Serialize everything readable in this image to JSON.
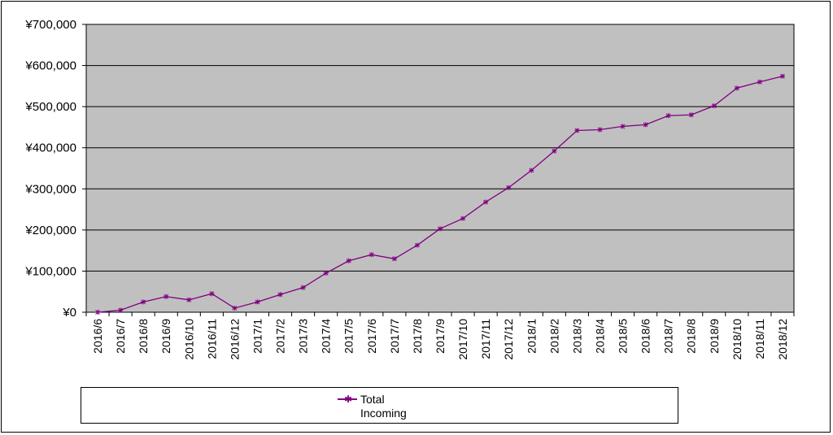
{
  "chart_data": {
    "type": "line",
    "title": "",
    "xlabel": "",
    "ylabel": "",
    "ylim": [
      0,
      700000
    ],
    "yticks": [
      "¥0",
      "¥100,000",
      "¥200,000",
      "¥300,000",
      "¥400,000",
      "¥500,000",
      "¥600,000",
      "¥700,000"
    ],
    "grid": true,
    "legend_position": "bottom",
    "categories": [
      "2016/6",
      "2016/7",
      "2016/8",
      "2016/9",
      "2016/10",
      "2016/11",
      "2016/12",
      "2017/1",
      "2017/2",
      "2017/3",
      "2017/4",
      "2017/5",
      "2017/6",
      "2017/7",
      "2017/8",
      "2017/9",
      "2017/10",
      "2017/11",
      "2017/12",
      "2018/1",
      "2018/2",
      "2018/3",
      "2018/4",
      "2018/5",
      "2018/6",
      "2018/7",
      "2018/8",
      "2018/9",
      "2018/10",
      "2018/11",
      "2018/12"
    ],
    "series": [
      {
        "name": "Total Incoming",
        "color": "#800080",
        "values": [
          0,
          5000,
          25000,
          38000,
          30000,
          45000,
          10000,
          25000,
          43000,
          60000,
          95000,
          125000,
          140000,
          130000,
          163000,
          203000,
          228000,
          268000,
          303000,
          345000,
          392000,
          442000,
          444000,
          452000,
          456000,
          478000,
          480000,
          502000,
          545000,
          560000,
          574000
        ]
      }
    ],
    "legend": {
      "line1": "Total",
      "line2": "Incoming"
    }
  },
  "colors": {
    "plot_background": "#c0c0c0",
    "gridline": "#000000",
    "series": "#800080"
  }
}
